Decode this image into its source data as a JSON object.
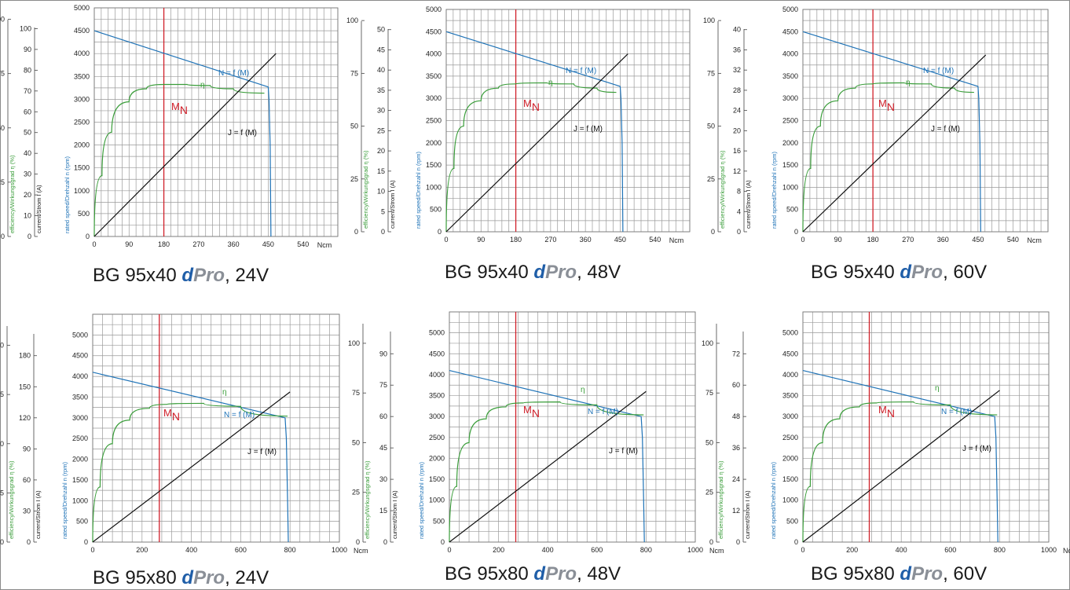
{
  "colors": {
    "speed": "#1f73b7",
    "efficiency": "#3a9d3a",
    "current": "#111111",
    "rated": "#d0202a",
    "grid": "#9a9a9a"
  },
  "axis_labels": {
    "efficiency": "efficiency/Wirkungsgrad   η  (%)",
    "current": "current/Strom  I (A)",
    "speed": "rated  speed/Drehzahl  n  (rpm)"
  },
  "speed_ticks": [
    "0",
    "500",
    "1000",
    "1500",
    "2000",
    "2500",
    "3000",
    "3500",
    "4000",
    "4500",
    "5000"
  ],
  "efficiency_ticks": [
    "0",
    "25",
    "50",
    "75",
    "100"
  ],
  "chart_data": [
    {
      "type": "line",
      "caption": {
        "model": "BG 95x40 ",
        "d": "d",
        "pro": "Pro",
        "voltage": ", 24V"
      },
      "x_ticks": [
        "0",
        "90",
        "180",
        "270",
        "360",
        "450",
        "540"
      ],
      "x_unit": "Ncm",
      "xlim": [
        0,
        630
      ],
      "ylim": [
        0,
        5000
      ],
      "current_ticks": [
        "0",
        "10",
        "20",
        "30",
        "40",
        "50",
        "60",
        "70",
        "80",
        "90",
        "100"
      ],
      "current_max": 110,
      "rated_torque": 180,
      "rated_label": "M",
      "rated_sub": "N",
      "series": [
        {
          "name": "N = f (M)",
          "points": [
            [
              0,
              4500
            ],
            [
              450,
              3270
            ],
            [
              452,
              3000
            ],
            [
              455,
              2000
            ],
            [
              457,
              0
            ]
          ]
        },
        {
          "name": "η",
          "points": [
            [
              0,
              0
            ],
            [
              20,
              28
            ],
            [
              45,
              48
            ],
            [
              90,
              62
            ],
            [
              135,
              68
            ],
            [
              180,
              70
            ],
            [
              240,
              70
            ],
            [
              300,
              69.5
            ],
            [
              360,
              68
            ],
            [
              440,
              66
            ]
          ]
        },
        {
          "name": "J = f (M)",
          "points": [
            [
              0,
              0
            ],
            [
              470,
              88
            ]
          ]
        }
      ]
    },
    {
      "type": "line",
      "caption": {
        "model": "BG 95x40 ",
        "d": "d",
        "pro": "Pro",
        "voltage": ", 48V"
      },
      "x_ticks": [
        "0",
        "90",
        "180",
        "270",
        "360",
        "450",
        "540"
      ],
      "x_unit": "Ncm",
      "xlim": [
        0,
        630
      ],
      "ylim": [
        0,
        5000
      ],
      "current_ticks": [
        "0",
        "5",
        "10",
        "15",
        "20",
        "25",
        "30",
        "35",
        "40",
        "45",
        "50"
      ],
      "current_max": 55,
      "rated_torque": 180,
      "rated_label": "M",
      "rated_sub": "N",
      "series": [
        {
          "name": "N = f (M)",
          "points": [
            [
              0,
              4500
            ],
            [
              450,
              3270
            ],
            [
              452,
              3000
            ],
            [
              455,
              2000
            ],
            [
              457,
              0
            ]
          ]
        },
        {
          "name": "η",
          "points": [
            [
              0,
              0
            ],
            [
              20,
              30
            ],
            [
              45,
              50
            ],
            [
              90,
              62
            ],
            [
              135,
              68
            ],
            [
              180,
              70
            ],
            [
              260,
              70.5
            ],
            [
              330,
              70
            ],
            [
              390,
              68
            ],
            [
              440,
              66
            ]
          ]
        },
        {
          "name": "J = f (M)",
          "points": [
            [
              0,
              0
            ],
            [
              470,
              44
            ]
          ]
        }
      ]
    },
    {
      "type": "line",
      "caption": {
        "model": "BG 95x40 ",
        "d": "d",
        "pro": "Pro",
        "voltage": ", 60V"
      },
      "x_ticks": [
        "0",
        "90",
        "180",
        "270",
        "360",
        "450",
        "540"
      ],
      "x_unit": "Ncm",
      "xlim": [
        0,
        630
      ],
      "ylim": [
        0,
        5000
      ],
      "current_ticks": [
        "0",
        "4",
        "8",
        "12",
        "16",
        "20",
        "24",
        "28",
        "32",
        "36",
        "40"
      ],
      "current_max": 44,
      "rated_torque": 180,
      "rated_label": "M",
      "rated_sub": "N",
      "series": [
        {
          "name": "N = f (M)",
          "points": [
            [
              0,
              4500
            ],
            [
              450,
              3270
            ],
            [
              452,
              3000
            ],
            [
              455,
              2000
            ],
            [
              457,
              0
            ]
          ]
        },
        {
          "name": "η",
          "points": [
            [
              0,
              0
            ],
            [
              20,
              30
            ],
            [
              45,
              50
            ],
            [
              90,
              62
            ],
            [
              135,
              68
            ],
            [
              180,
              70
            ],
            [
              260,
              70.5
            ],
            [
              330,
              70
            ],
            [
              390,
              68
            ],
            [
              440,
              66
            ]
          ]
        },
        {
          "name": "J = f (M)",
          "points": [
            [
              0,
              0
            ],
            [
              470,
              35
            ]
          ]
        }
      ]
    },
    {
      "type": "line",
      "caption": {
        "model": "BG 95x80 ",
        "d": "d",
        "pro": "Pro",
        "voltage": ", 24V"
      },
      "x_ticks": [
        "0",
        "200",
        "400",
        "600",
        "800",
        "1000"
      ],
      "x_unit": "Ncm",
      "xlim": [
        0,
        1000
      ],
      "ylim": [
        0,
        5500
      ],
      "current_ticks": [
        "0",
        "30",
        "60",
        "90",
        "120",
        "150",
        "180"
      ],
      "current_max": 220,
      "rated_torque": 270,
      "rated_label": "M",
      "rated_sub": "N",
      "series": [
        {
          "name": "N = f (M)",
          "points": [
            [
              0,
              4100
            ],
            [
              780,
              3000
            ],
            [
              785,
              2500
            ],
            [
              790,
              1000
            ],
            [
              793,
              0
            ]
          ]
        },
        {
          "name": "η",
          "points": [
            [
              0,
              0
            ],
            [
              30,
              28
            ],
            [
              80,
              50
            ],
            [
              150,
              62
            ],
            [
              230,
              68
            ],
            [
              300,
              70
            ],
            [
              450,
              70.5
            ],
            [
              600,
              69
            ],
            [
              790,
              64
            ]
          ]
        },
        {
          "name": "J = f (M)",
          "points": [
            [
              0,
              0
            ],
            [
              800,
              145
            ]
          ]
        }
      ]
    },
    {
      "type": "line",
      "caption": {
        "model": "BG 95x80 ",
        "d": "d",
        "pro": "Pro",
        "voltage": ", 48V"
      },
      "x_ticks": [
        "0",
        "200",
        "400",
        "600",
        "800",
        "1000"
      ],
      "x_unit": "Ncm",
      "xlim": [
        0,
        1000
      ],
      "ylim": [
        0,
        5500
      ],
      "current_ticks": [
        "0",
        "15",
        "30",
        "45",
        "60",
        "75",
        "90"
      ],
      "current_max": 110,
      "rated_torque": 270,
      "rated_label": "M",
      "rated_sub": "N",
      "series": [
        {
          "name": "N = f (M)",
          "points": [
            [
              0,
              4100
            ],
            [
              780,
              3000
            ],
            [
              785,
              2500
            ],
            [
              790,
              1000
            ],
            [
              793,
              0
            ]
          ]
        },
        {
          "name": "η",
          "points": [
            [
              0,
              0
            ],
            [
              30,
              28
            ],
            [
              80,
              50
            ],
            [
              150,
              62
            ],
            [
              230,
              68
            ],
            [
              300,
              70
            ],
            [
              450,
              70.5
            ],
            [
              600,
              69
            ],
            [
              790,
              64
            ]
          ]
        },
        {
          "name": "J = f (M)",
          "points": [
            [
              0,
              0
            ],
            [
              800,
              72
            ]
          ]
        }
      ]
    },
    {
      "type": "line",
      "caption": {
        "model": "BG 95x80 ",
        "d": "d",
        "pro": "Pro",
        "voltage": ", 60V"
      },
      "x_ticks": [
        "0",
        "200",
        "400",
        "600",
        "800",
        "1000"
      ],
      "x_unit": "Ncm",
      "xlim": [
        0,
        1000
      ],
      "ylim": [
        0,
        5500
      ],
      "current_ticks": [
        "0",
        "12",
        "24",
        "36",
        "48",
        "60",
        "72"
      ],
      "current_max": 88,
      "rated_torque": 270,
      "rated_label": "M",
      "rated_sub": "N",
      "series": [
        {
          "name": "N = f (M)",
          "points": [
            [
              0,
              4100
            ],
            [
              780,
              3000
            ],
            [
              785,
              2500
            ],
            [
              790,
              1000
            ],
            [
              793,
              0
            ]
          ]
        },
        {
          "name": "η",
          "points": [
            [
              0,
              0
            ],
            [
              30,
              28
            ],
            [
              80,
              50
            ],
            [
              150,
              62
            ],
            [
              230,
              68
            ],
            [
              300,
              70
            ],
            [
              450,
              70.5
            ],
            [
              600,
              69
            ],
            [
              790,
              64
            ]
          ]
        },
        {
          "name": "J = f (M)",
          "points": [
            [
              0,
              0
            ],
            [
              800,
              58
            ]
          ]
        }
      ]
    }
  ]
}
